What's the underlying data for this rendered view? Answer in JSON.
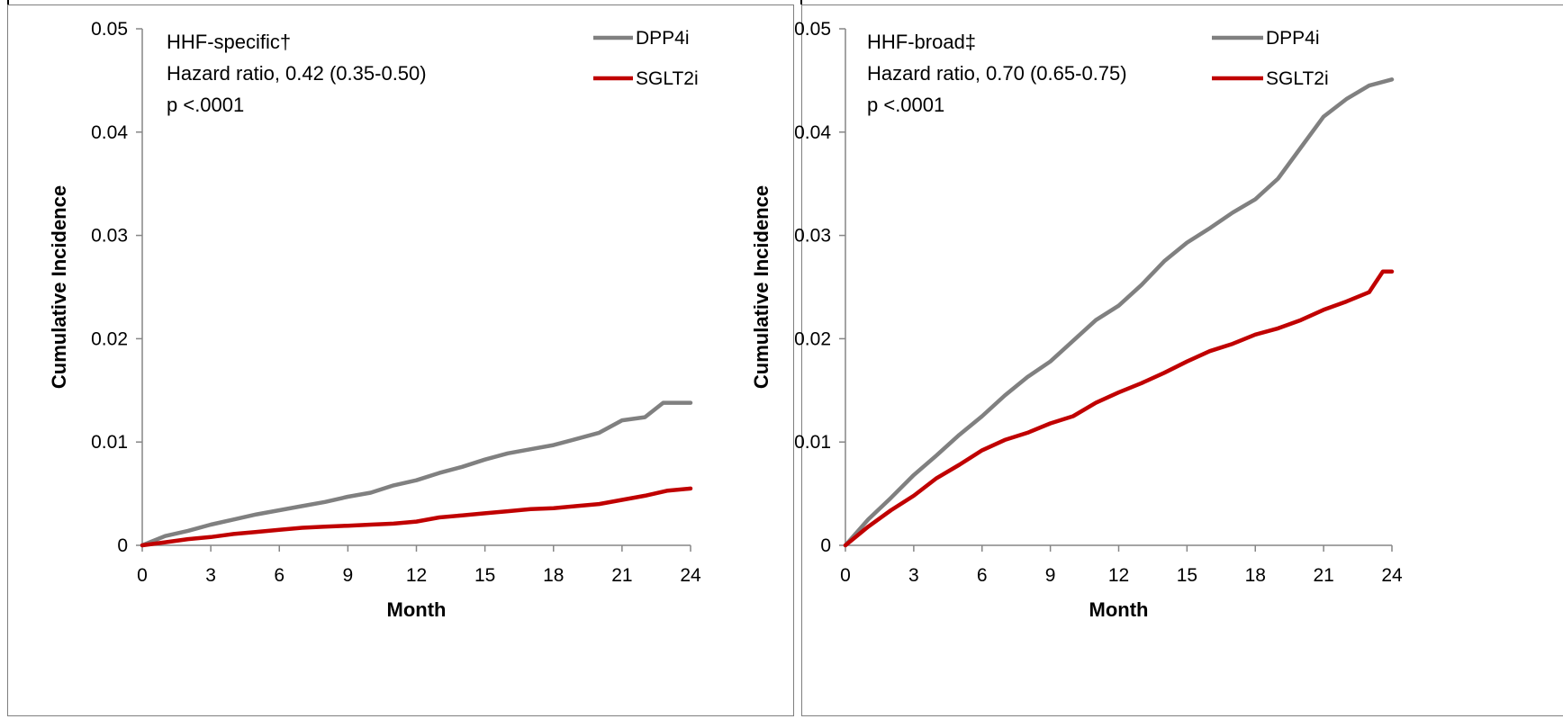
{
  "chart_data": [
    {
      "type": "line",
      "xlabel": "Month",
      "ylabel": "Cumulative Incidence",
      "xlim": [
        0,
        24
      ],
      "ylim": [
        0,
        0.05
      ],
      "xticks": [
        "0",
        "3",
        "6",
        "9",
        "12",
        "15",
        "18",
        "21",
        "24"
      ],
      "yticks": [
        "0",
        "0.01",
        "0.02",
        "0.03",
        "0.04",
        "0.05"
      ],
      "grid": false,
      "legend_position": "top-right",
      "annotations": [
        "HHF-specific†",
        "Hazard ratio, 0.42  (0.35-0.50)",
        "p <.0001"
      ],
      "series": [
        {
          "name": "DPP4i",
          "color": "#808080",
          "x": [
            0,
            1,
            2,
            3,
            4,
            5,
            6,
            7,
            8,
            9,
            10,
            11,
            12,
            13,
            14,
            15,
            16,
            17,
            18,
            19,
            20,
            21,
            22,
            22.8,
            24
          ],
          "y": [
            0,
            0.0009,
            0.0014,
            0.002,
            0.0025,
            0.003,
            0.0034,
            0.0038,
            0.0042,
            0.0047,
            0.0051,
            0.0058,
            0.0063,
            0.007,
            0.0076,
            0.0083,
            0.0089,
            0.0093,
            0.0097,
            0.0103,
            0.0109,
            0.0121,
            0.0124,
            0.0138,
            0.0138
          ]
        },
        {
          "name": "SGLT2i",
          "color": "#c00000",
          "x": [
            0,
            1,
            2,
            3,
            4,
            5,
            6,
            7,
            8,
            9,
            10,
            11,
            12,
            13,
            14,
            15,
            16,
            17,
            18,
            19,
            20,
            21,
            22,
            23,
            24
          ],
          "y": [
            0,
            0.0003,
            0.0006,
            0.0008,
            0.0011,
            0.0013,
            0.0015,
            0.0017,
            0.0018,
            0.0019,
            0.002,
            0.0021,
            0.0023,
            0.0027,
            0.0029,
            0.0031,
            0.0033,
            0.0035,
            0.0036,
            0.0038,
            0.004,
            0.0044,
            0.0048,
            0.0053,
            0.0055
          ]
        }
      ]
    },
    {
      "type": "line",
      "xlabel": "Month",
      "ylabel": "Cumulative Incidence",
      "xlim": [
        0,
        24
      ],
      "ylim": [
        0,
        0.05
      ],
      "xticks": [
        "0",
        "3",
        "6",
        "9",
        "12",
        "15",
        "18",
        "21",
        "24"
      ],
      "yticks": [
        "0",
        "0.01",
        "0.02",
        "0.03",
        "0.04",
        "0.05"
      ],
      "grid": false,
      "legend_position": "top-right",
      "annotations": [
        "HHF-broad‡",
        "Hazard ratio, 0.70  (0.65-0.75)",
        "p <.0001"
      ],
      "series": [
        {
          "name": "DPP4i",
          "color": "#808080",
          "x": [
            0,
            1,
            2,
            3,
            4,
            5,
            6,
            7,
            8,
            9,
            10,
            11,
            12,
            13,
            14,
            15,
            16,
            17,
            18,
            19,
            20,
            21,
            22,
            23,
            24
          ],
          "y": [
            0,
            0.0025,
            0.0046,
            0.0068,
            0.0087,
            0.0107,
            0.0125,
            0.0145,
            0.0163,
            0.0178,
            0.0198,
            0.0218,
            0.0232,
            0.0252,
            0.0275,
            0.0293,
            0.0307,
            0.0322,
            0.0335,
            0.0355,
            0.0385,
            0.0415,
            0.0432,
            0.0445,
            0.0451
          ]
        },
        {
          "name": "SGLT2i",
          "color": "#c00000",
          "x": [
            0,
            1,
            2,
            3,
            4,
            5,
            6,
            7,
            8,
            9,
            10,
            11,
            12,
            13,
            14,
            15,
            16,
            17,
            18,
            19,
            20,
            21,
            22,
            23,
            23.6,
            24
          ],
          "y": [
            0,
            0.0018,
            0.0034,
            0.0048,
            0.0065,
            0.0078,
            0.0092,
            0.0102,
            0.0109,
            0.0118,
            0.0125,
            0.0138,
            0.0148,
            0.0157,
            0.0167,
            0.0178,
            0.0188,
            0.0195,
            0.0204,
            0.021,
            0.0218,
            0.0228,
            0.0236,
            0.0245,
            0.0265,
            0.0265
          ]
        }
      ]
    }
  ]
}
